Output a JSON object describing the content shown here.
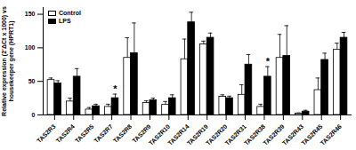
{
  "chart_data": {
    "type": "bar",
    "y_label": "Relative expression (2⁻ΔCt x 1000) vs housekeeper gene (HPRT1)",
    "categories": [
      "TAS2R3",
      "TAS2R4",
      "TAS2R5",
      "TAS2R7",
      "TAS2R8",
      "TAS2R9",
      "TAS2R10",
      "TAS2R14",
      "TAS2R19",
      "TAS2R20",
      "TAS2R31",
      "TAS2R38",
      "TAS2R39",
      "TAS2R43",
      "TAS2R45",
      "TAS2R46"
    ],
    "series": [
      {
        "name": "Control",
        "color": "#ffffff",
        "values": [
          52,
          20,
          8,
          12,
          85,
          18,
          15,
          83,
          105,
          27,
          30,
          12,
          85,
          2,
          37,
          97
        ],
        "errors": [
          3,
          5,
          3,
          4,
          30,
          3,
          5,
          30,
          5,
          3,
          15,
          4,
          35,
          1,
          18,
          10
        ]
      },
      {
        "name": "LPS",
        "color": "#000000",
        "values": [
          47,
          57,
          13,
          25,
          92,
          22,
          25,
          138,
          115,
          25,
          75,
          57,
          88,
          5,
          82,
          115
        ],
        "errors": [
          4,
          12,
          3,
          6,
          45,
          3,
          5,
          15,
          7,
          3,
          15,
          15,
          45,
          2,
          10,
          8
        ]
      }
    ],
    "annotations": [
      {
        "category": "TAS2R7",
        "series": "LPS",
        "text": "*"
      },
      {
        "category": "TAS2R38",
        "series": "LPS",
        "text": "*"
      }
    ],
    "ylim": [
      0,
      160
    ],
    "yticks": [
      0,
      50,
      100,
      150
    ],
    "legend": "top-left"
  }
}
